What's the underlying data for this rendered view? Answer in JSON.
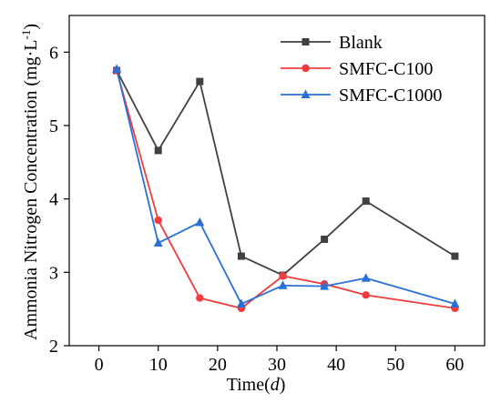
{
  "chart_data": {
    "type": "line",
    "xlabel": "Time(d)",
    "xlabel_parts": {
      "prefix": "Time(",
      "var": "d",
      "suffix": ")"
    },
    "ylabel": "Ammonia Nitrogen Concentration (mg·L⁻¹)",
    "ylabel_parts": {
      "main": "Ammonia Nitrogen Concentration (mg·L",
      "sup": "-1",
      "end": ")"
    },
    "xlim": [
      -5,
      65
    ],
    "ylim": [
      2,
      6.5
    ],
    "xticks": [
      0,
      10,
      20,
      30,
      40,
      50,
      60
    ],
    "yticks": [
      2,
      3,
      4,
      5,
      6
    ],
    "x": [
      3,
      10,
      17,
      24,
      31,
      38,
      45,
      60
    ],
    "legend_position": "top-right",
    "grid": false,
    "series": [
      {
        "name": "Blank",
        "color": "#404040",
        "marker": "square",
        "values": [
          5.75,
          4.66,
          5.6,
          3.22,
          2.96,
          3.45,
          3.97,
          3.22
        ]
      },
      {
        "name": "SMFC-C100",
        "color": "#f03c3c",
        "marker": "circle",
        "values": [
          5.75,
          3.71,
          2.65,
          2.51,
          2.95,
          2.84,
          2.69,
          2.51
        ]
      },
      {
        "name": "SMFC-C1000",
        "color": "#2a6fd6",
        "marker": "triangle",
        "values": [
          5.77,
          3.4,
          3.68,
          2.57,
          2.82,
          2.81,
          2.92,
          2.57
        ]
      }
    ]
  }
}
